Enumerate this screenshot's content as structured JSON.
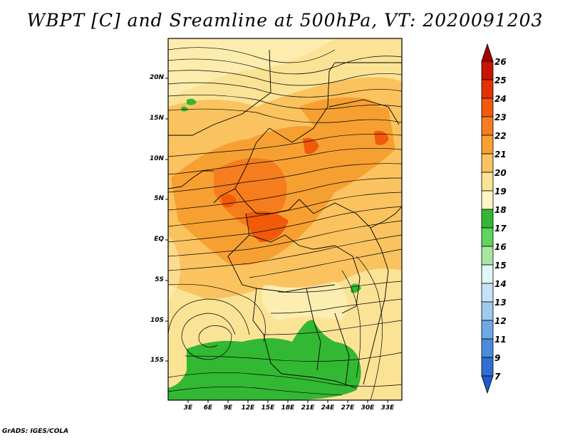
{
  "title": "WBPT [C] and Sreamline at 500hPa, VT: 2020091203",
  "map": {
    "variable": "Wet-bulb potential temperature [C]",
    "overlay": "Streamlines at 500hPa",
    "lat_labels": [
      "20N",
      "15N",
      "10N",
      "5N",
      "EQ",
      "5S",
      "10S",
      "15S"
    ],
    "lat_values": [
      20,
      15,
      10,
      5,
      0,
      -5,
      -10,
      -15
    ],
    "lon_labels": [
      "3E",
      "6E",
      "9E",
      "12E",
      "15E",
      "18E",
      "21E",
      "24E",
      "27E",
      "30E",
      "33E"
    ],
    "lon_values": [
      3,
      6,
      9,
      12,
      15,
      18,
      21,
      24,
      27,
      30,
      33
    ]
  },
  "colorbar": {
    "labels": [
      "26",
      "25",
      "24",
      "23",
      "22",
      "21",
      "20",
      "19",
      "18",
      "17",
      "16",
      "15",
      "14",
      "13",
      "12",
      "11",
      "9",
      "7"
    ],
    "colors": [
      "#a50000",
      "#c81400",
      "#e33200",
      "#f05a0a",
      "#f57d1e",
      "#f7a032",
      "#fac35f",
      "#fbe396",
      "#fdf5c3",
      "#33b833",
      "#5fd45f",
      "#a8e6a0",
      "#e1f7f7",
      "#c6e2f7",
      "#9ecaf0",
      "#6da9e6",
      "#4a8bdc",
      "#2f6fd3",
      "#1a5cc9"
    ]
  },
  "credit": "GrADS: IGES/COLA"
}
